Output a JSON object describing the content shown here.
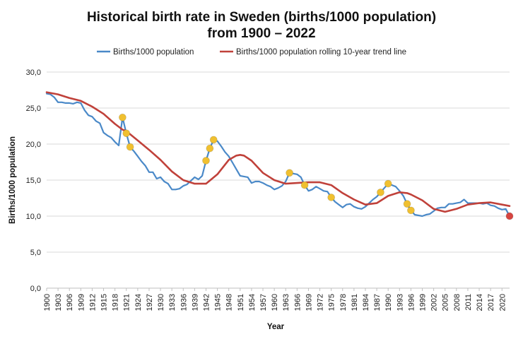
{
  "chart_data": {
    "type": "line",
    "title": "Historical birth rate in Sweden (births/1000 population)",
    "subtitle": "from 1900 – 2022",
    "xlabel": "Year",
    "ylabel": "Births/1000 population",
    "xlim": [
      1900,
      2022
    ],
    "ylim": [
      0,
      30
    ],
    "yticks": [
      "0,0",
      "5,0",
      "10,0",
      "15,0",
      "20,0",
      "25,0",
      "30,0"
    ],
    "xticks": [
      1900,
      1903,
      1906,
      1909,
      1912,
      1915,
      1918,
      1921,
      1924,
      1927,
      1930,
      1933,
      1936,
      1939,
      1942,
      1945,
      1948,
      1951,
      1954,
      1957,
      1960,
      1963,
      1966,
      1969,
      1972,
      1975,
      1978,
      1981,
      1984,
      1987,
      1990,
      1993,
      1996,
      1999,
      2002,
      2005,
      2008,
      2011,
      2014,
      2017,
      2020
    ],
    "grid": "horizontal",
    "legend": "top",
    "series": [
      {
        "name": "Births/1000 population",
        "color": "#4a89c8",
        "x": [
          1900,
          1901,
          1902,
          1903,
          1904,
          1905,
          1906,
          1907,
          1908,
          1909,
          1910,
          1911,
          1912,
          1913,
          1914,
          1915,
          1916,
          1917,
          1918,
          1919,
          1920,
          1921,
          1922,
          1923,
          1924,
          1925,
          1926,
          1927,
          1928,
          1929,
          1930,
          1931,
          1932,
          1933,
          1934,
          1935,
          1936,
          1937,
          1938,
          1939,
          1940,
          1941,
          1942,
          1943,
          1944,
          1945,
          1946,
          1947,
          1948,
          1949,
          1950,
          1951,
          1952,
          1953,
          1954,
          1955,
          1956,
          1957,
          1958,
          1959,
          1960,
          1961,
          1962,
          1963,
          1964,
          1965,
          1966,
          1967,
          1968,
          1969,
          1970,
          1971,
          1972,
          1973,
          1974,
          1975,
          1976,
          1977,
          1978,
          1979,
          1980,
          1981,
          1982,
          1983,
          1984,
          1985,
          1986,
          1987,
          1988,
          1989,
          1990,
          1991,
          1992,
          1993,
          1994,
          1995,
          1996,
          1997,
          1998,
          1999,
          2000,
          2001,
          2002,
          2003,
          2004,
          2005,
          2006,
          2007,
          2008,
          2009,
          2010,
          2011,
          2012,
          2013,
          2014,
          2015,
          2016,
          2017,
          2018,
          2019,
          2020,
          2021,
          2022
        ],
        "values": [
          27.0,
          26.9,
          26.5,
          25.8,
          25.8,
          25.7,
          25.7,
          25.6,
          25.8,
          25.7,
          24.7,
          24.0,
          23.8,
          23.2,
          22.9,
          21.6,
          21.2,
          20.9,
          20.3,
          19.8,
          23.7,
          21.5,
          19.6,
          19.0,
          18.3,
          17.6,
          17.0,
          16.1,
          16.1,
          15.2,
          15.4,
          14.8,
          14.5,
          13.7,
          13.7,
          13.8,
          14.2,
          14.4,
          14.9,
          15.4,
          15.1,
          15.6,
          17.7,
          19.4,
          20.6,
          20.4,
          19.7,
          18.9,
          18.3,
          17.4,
          16.5,
          15.6,
          15.5,
          15.4,
          14.6,
          14.8,
          14.8,
          14.6,
          14.3,
          14.1,
          13.7,
          13.9,
          14.2,
          14.8,
          16.0,
          15.9,
          15.8,
          15.4,
          14.3,
          13.5,
          13.7,
          14.1,
          13.8,
          13.5,
          13.4,
          12.6,
          12.0,
          11.6,
          11.2,
          11.6,
          11.7,
          11.3,
          11.1,
          11.0,
          11.3,
          11.8,
          12.3,
          12.7,
          13.3,
          13.9,
          14.5,
          14.3,
          14.1,
          13.5,
          12.8,
          11.7,
          10.8,
          10.2,
          10.1,
          10.0,
          10.2,
          10.3,
          10.7,
          11.1,
          11.2,
          11.2,
          11.7,
          11.7,
          11.8,
          11.9,
          12.3,
          11.8,
          11.8,
          11.8,
          11.8,
          11.7,
          11.8,
          11.5,
          11.4,
          11.1,
          10.9,
          11.0,
          10.0
        ]
      },
      {
        "name": "Births/1000 population rolling 10-year trend line",
        "color": "#c0413a",
        "x": [
          1900,
          1903,
          1906,
          1909,
          1912,
          1915,
          1918,
          1920,
          1921,
          1924,
          1927,
          1930,
          1933,
          1936,
          1939,
          1942,
          1945,
          1948,
          1950,
          1951,
          1952,
          1954,
          1957,
          1960,
          1963,
          1966,
          1969,
          1972,
          1975,
          1978,
          1981,
          1984,
          1987,
          1990,
          1993,
          1995,
          1996,
          1999,
          2002,
          2005,
          2008,
          2011,
          2014,
          2017,
          2020,
          2022
        ],
        "values": [
          27.2,
          26.9,
          26.4,
          26.0,
          25.2,
          24.2,
          22.8,
          22.0,
          21.8,
          20.5,
          19.2,
          17.8,
          16.2,
          15.0,
          14.5,
          14.5,
          15.8,
          17.8,
          18.4,
          18.5,
          18.4,
          17.7,
          16.0,
          15.0,
          14.5,
          14.6,
          14.7,
          14.7,
          14.3,
          13.2,
          12.3,
          11.6,
          11.8,
          12.8,
          13.3,
          13.2,
          13.0,
          12.2,
          11.0,
          10.6,
          11.0,
          11.6,
          11.8,
          11.9,
          11.6,
          11.4
        ]
      }
    ],
    "highlighted_points": [
      {
        "x": 1920,
        "y": 23.7,
        "color": "#f0c030"
      },
      {
        "x": 1921,
        "y": 21.5,
        "color": "#f0c030"
      },
      {
        "x": 1922,
        "y": 19.6,
        "color": "#f0c030"
      },
      {
        "x": 1942,
        "y": 17.7,
        "color": "#f0c030"
      },
      {
        "x": 1943,
        "y": 19.4,
        "color": "#f0c030"
      },
      {
        "x": 1944,
        "y": 20.6,
        "color": "#f0c030"
      },
      {
        "x": 1964,
        "y": 16.0,
        "color": "#f0c030"
      },
      {
        "x": 1968,
        "y": 14.3,
        "color": "#f0c030"
      },
      {
        "x": 1975,
        "y": 12.6,
        "color": "#f0c030"
      },
      {
        "x": 1988,
        "y": 13.3,
        "color": "#f0c030"
      },
      {
        "x": 1990,
        "y": 14.5,
        "color": "#f0c030"
      },
      {
        "x": 1995,
        "y": 11.7,
        "color": "#f0c030"
      },
      {
        "x": 1996,
        "y": 10.8,
        "color": "#f0c030"
      },
      {
        "x": 2022,
        "y": 10.0,
        "color": "#d64541"
      }
    ]
  }
}
